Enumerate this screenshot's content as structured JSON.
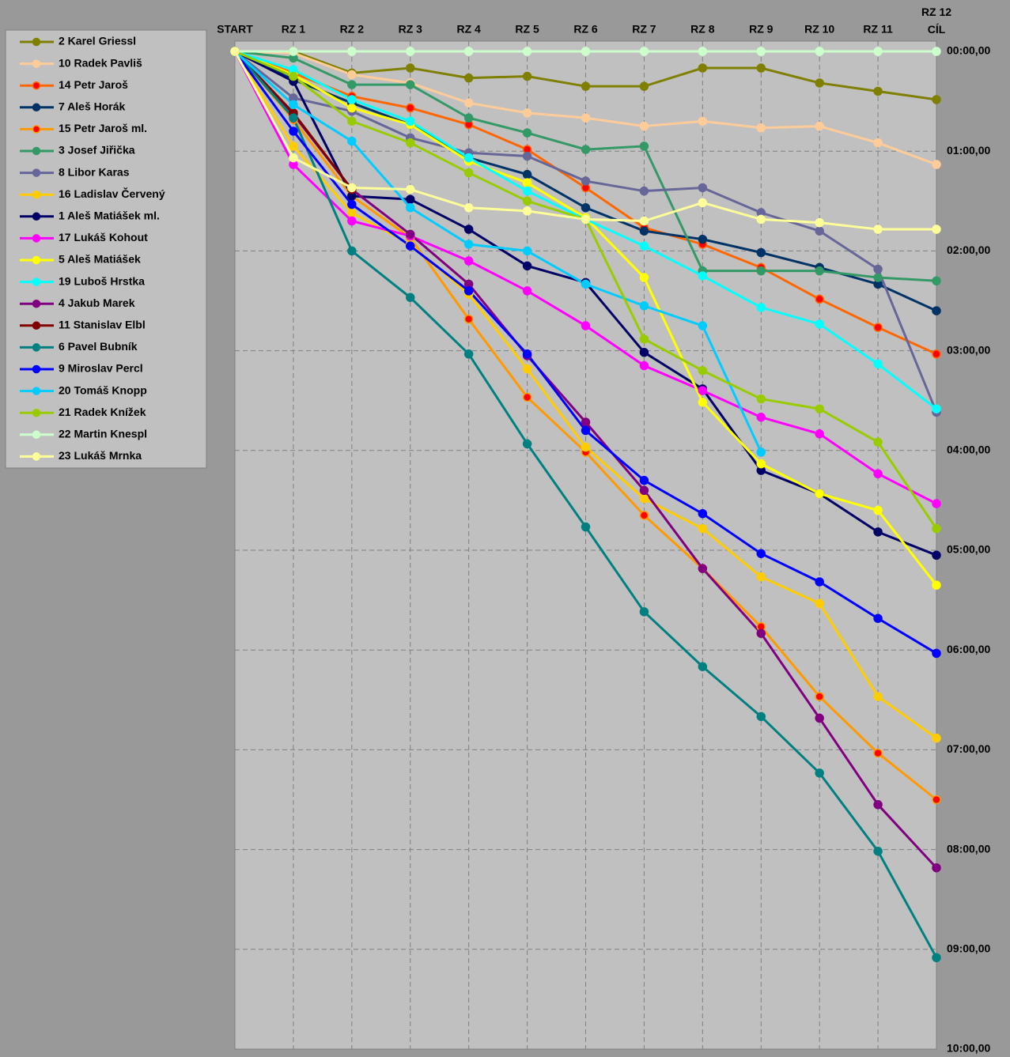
{
  "chart_data": {
    "type": "line",
    "categories": [
      "START",
      "RZ 1",
      "RZ 2",
      "RZ 3",
      "RZ 4",
      "RZ 5",
      "RZ 6",
      "RZ 7",
      "RZ 8",
      "RZ 9",
      "RZ 10",
      "RZ 11",
      "RZ 12\nCÍL"
    ],
    "ylim": [
      0,
      600
    ],
    "y_inverted": true,
    "grid": true,
    "legend": "left",
    "yticks": [
      {
        "value": 0,
        "label": "00:00,00"
      },
      {
        "value": 60,
        "label": "01:00,00"
      },
      {
        "value": 120,
        "label": "02:00,00"
      },
      {
        "value": 180,
        "label": "03:00,00"
      },
      {
        "value": 240,
        "label": "04:00,00"
      },
      {
        "value": 300,
        "label": "05:00,00"
      },
      {
        "value": 360,
        "label": "06:00,00"
      },
      {
        "value": 420,
        "label": "07:00,00"
      },
      {
        "value": 480,
        "label": "08:00,00"
      },
      {
        "value": 540,
        "label": "09:00,00"
      },
      {
        "value": 600,
        "label": "10:00,00"
      }
    ],
    "series": [
      {
        "name": "2 Karel Griessl",
        "color": "#808000",
        "values": [
          0,
          0,
          13,
          10,
          16,
          15,
          21,
          21,
          10,
          10,
          19,
          24,
          29
        ]
      },
      {
        "name": "10 Radek Pavliš",
        "color": "#FFCC99",
        "values": [
          0,
          1,
          14,
          19,
          31,
          37,
          40,
          45,
          42,
          46,
          45,
          55,
          68
        ]
      },
      {
        "name": "14 Petr Jaroš",
        "color": "#FF6600",
        "marker_color": "#FF0000",
        "values": [
          0,
          13,
          27,
          34,
          44,
          59,
          82,
          106,
          116,
          130,
          149,
          166,
          182
        ]
      },
      {
        "name": "7 Aleš Horák",
        "color": "#003366",
        "values": [
          0,
          17,
          31,
          44,
          64,
          74,
          94,
          108,
          113,
          121,
          130,
          140,
          156
        ]
      },
      {
        "name": "15 Petr Jaroš ml.",
        "color": "#FF9900",
        "marker_color": "#FF0000",
        "values": [
          0,
          41,
          87,
          112,
          161,
          208,
          241,
          279,
          311,
          346,
          388,
          422,
          450
        ]
      },
      {
        "name": "3 Josef Jiřička",
        "color": "#339966",
        "values": [
          0,
          4,
          20,
          20,
          40,
          49,
          59,
          57,
          132,
          132,
          132,
          136,
          138
        ]
      },
      {
        "name": "8 Libor Karas",
        "color": "#666699",
        "values": [
          0,
          28,
          36,
          52,
          61,
          63,
          78,
          84,
          82,
          97,
          108,
          131,
          217
        ]
      },
      {
        "name": "16 Ladislav Červený",
        "color": "#FFCC00",
        "values": [
          0,
          57,
          97,
          116,
          146,
          191,
          238,
          269,
          287,
          316,
          332,
          388,
          413
        ]
      },
      {
        "name": "1 Aleš Matiášek ml.",
        "color": "#000066",
        "values": [
          0,
          18,
          87,
          89,
          107,
          129,
          139,
          181,
          203,
          252,
          266,
          289,
          303
        ]
      },
      {
        "name": "17 Lukáš Kohout",
        "color": "#FF00FF",
        "values": [
          0,
          68,
          102,
          111,
          126,
          144,
          165,
          189,
          204,
          220,
          230,
          254,
          272
        ]
      },
      {
        "name": "5 Aleš Matiášek",
        "color": "#FFFF00",
        "values": [
          0,
          14,
          34,
          44,
          66,
          79,
          100,
          136,
          211,
          248,
          266,
          276,
          321
        ]
      },
      {
        "name": "19 Luboš Hrstka",
        "color": "#00FFFF",
        "values": [
          0,
          11,
          29,
          42,
          64,
          84,
          101,
          117,
          135,
          154,
          164,
          188,
          215
        ]
      },
      {
        "name": "4 Jakub Marek",
        "color": "#800080",
        "values": [
          0,
          38,
          83,
          110,
          140,
          183,
          223,
          264,
          311,
          350,
          401,
          453,
          491
        ]
      },
      {
        "name": "11 Stanislav Elbl",
        "color": "#800000",
        "values": [
          0,
          37,
          83,
          null,
          null,
          null,
          null,
          null,
          null,
          null,
          null,
          null,
          null
        ]
      },
      {
        "name": "6 Pavel Bubník",
        "color": "#008080",
        "values": [
          0,
          40,
          120,
          148,
          182,
          236,
          286,
          337,
          370,
          400,
          434,
          481,
          545
        ]
      },
      {
        "name": "9 Miroslav Percl",
        "color": "#0000FF",
        "values": [
          0,
          48,
          92,
          117,
          144,
          182,
          228,
          258,
          278,
          302,
          319,
          341,
          362
        ]
      },
      {
        "name": "20 Tomáš Knopp",
        "color": "#00CCFF",
        "values": [
          0,
          32,
          54,
          94,
          116,
          120,
          140,
          153,
          165,
          241,
          null,
          null,
          null
        ]
      },
      {
        "name": "21 Radek Knížek",
        "color": "#99CC00",
        "values": [
          0,
          15,
          42,
          55,
          73,
          90,
          101,
          173,
          192,
          209,
          215,
          235,
          287
        ]
      },
      {
        "name": "22 Martin Knespl",
        "color": "#CCFFCC",
        "values": [
          0,
          0,
          0,
          0,
          0,
          0,
          0,
          0,
          0,
          0,
          0,
          0,
          0
        ]
      },
      {
        "name": "23 Lukáš Mrnka",
        "color": "#FFFF99",
        "values": [
          0,
          64,
          82,
          83,
          94,
          96,
          101,
          102,
          91,
          101,
          103,
          107,
          107
        ]
      }
    ]
  }
}
